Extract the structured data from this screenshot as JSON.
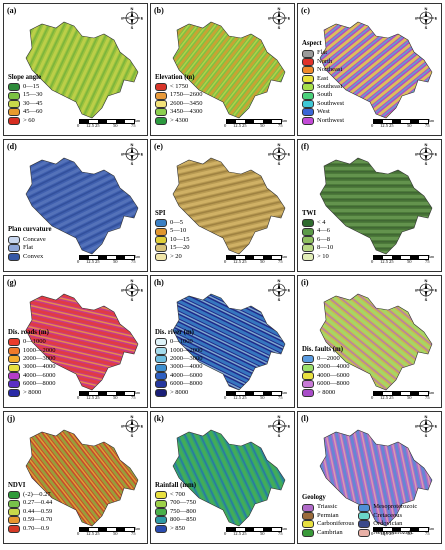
{
  "panels": [
    {
      "label": "(a)",
      "title": "Slope angle",
      "colors": [
        "#2e8b3a",
        "#7cc242",
        "#c8d84a",
        "#e79a2c",
        "#d62d20"
      ],
      "items": [
        "0—15",
        "15—30",
        "30—45",
        "45—60",
        "> 60"
      ]
    },
    {
      "label": "(b)",
      "title": "Elevation (m)",
      "colors": [
        "#d8352a",
        "#e89a3a",
        "#f2e27a",
        "#8ccf4f",
        "#2c9a3f"
      ],
      "items": [
        "< 1750",
        "1750—2600",
        "2600—3450",
        "3450—4300",
        "> 4300"
      ]
    },
    {
      "label": "(c)",
      "title": "Aspect",
      "colors": [
        "#9a9a9a",
        "#e0322a",
        "#f08a2a",
        "#e9e23a",
        "#a6e04a",
        "#4ad07a",
        "#3fc8d6",
        "#3a66d6",
        "#c24ad6"
      ],
      "items": [
        "Flat",
        "North",
        "Northeast",
        "East",
        "Southeast",
        "South",
        "Southwest",
        "West",
        "Northwest"
      ]
    },
    {
      "label": "(d)",
      "title": "Plan curvature",
      "colors": [
        "#c8d6ee",
        "#8ea6d8",
        "#3557a6"
      ],
      "items": [
        "Concave",
        "Flat",
        "Convex"
      ]
    },
    {
      "label": "(e)",
      "title": "SPI",
      "colors": [
        "#3a7fc4",
        "#e0962e",
        "#e0cf3a",
        "#d8c27a",
        "#f1e6a8"
      ],
      "items": [
        "0—5",
        "5—10",
        "10—15",
        "15—20",
        "> 20"
      ]
    },
    {
      "label": "(f)",
      "title": "TWI",
      "colors": [
        "#2f6b2f",
        "#5b9a48",
        "#8fc060",
        "#b8d884",
        "#e2eeb8"
      ],
      "items": [
        "< 4",
        "4—6",
        "6—8",
        "8—10",
        "> 10"
      ]
    },
    {
      "label": "(g)",
      "title": "Dis. roads (m)",
      "colors": [
        "#e93b2a",
        "#f07a2a",
        "#f6ad2e",
        "#e8e040",
        "#b43cc8",
        "#5a2fc4",
        "#2a2aa6"
      ],
      "items": [
        "0—1000",
        "1000—2000",
        "2000—3000",
        "3000—4000",
        "4000—6000",
        "6000—8000",
        "> 8000"
      ]
    },
    {
      "label": "(h)",
      "title": "Dis. river (m)",
      "colors": [
        "#dff3f8",
        "#a6dcec",
        "#6fbfe0",
        "#3d8fd0",
        "#2f5fc0",
        "#26389e",
        "#1a1f78"
      ],
      "items": [
        "0—1000",
        "1000—2000",
        "2000—3000",
        "3000—4000",
        "4000—6000",
        "6000—8000",
        "> 8000"
      ]
    },
    {
      "label": "(i)",
      "title": "Dis. faults (m)",
      "colors": [
        "#5a9be0",
        "#9be06a",
        "#e8e040",
        "#c77ad6",
        "#a84cc8"
      ],
      "items": [
        "0—2000",
        "2000—4000",
        "4000—6000",
        "6000—8000",
        "> 8000"
      ]
    },
    {
      "label": "(j)",
      "title": "NDVI",
      "colors": [
        "#2f9a3a",
        "#78c24a",
        "#c8d84a",
        "#e8962e",
        "#d63a26"
      ],
      "items": [
        "(-2)—0.27",
        "0.27—0.44",
        "0.44—0.59",
        "0.59—0.70",
        "0.70—0.9"
      ]
    },
    {
      "label": "(k)",
      "title": "Rainfall (mm)",
      "colors": [
        "#e8e040",
        "#9ed24a",
        "#4ab04a",
        "#2f9aa6",
        "#2a4cb0"
      ],
      "items": [
        "< 700",
        "700—750",
        "750—800",
        "800—850",
        "> 850"
      ]
    },
    {
      "label": "(l)",
      "title": "Geology",
      "colors": [
        "#b06ac8",
        "#4f8fd6",
        "#9a6a3a",
        "#6ad6c8",
        "#e8e040",
        "#3a4a8a",
        "#3a9a3a",
        "#e8b0a6"
      ],
      "items": [
        "Triassic",
        "Mesoproterozoic",
        "Permian",
        "Cretaceous",
        "Carboniferous",
        "Ordovician",
        "Cambrian",
        "Neoproterozoic"
      ]
    }
  ],
  "compass": {
    "n": "N",
    "e": "E",
    "s": "S",
    "w": "W"
  },
  "scale": {
    "ticks": [
      "0",
      "12.5",
      "25",
      "50",
      "75"
    ],
    "unit": "km"
  }
}
